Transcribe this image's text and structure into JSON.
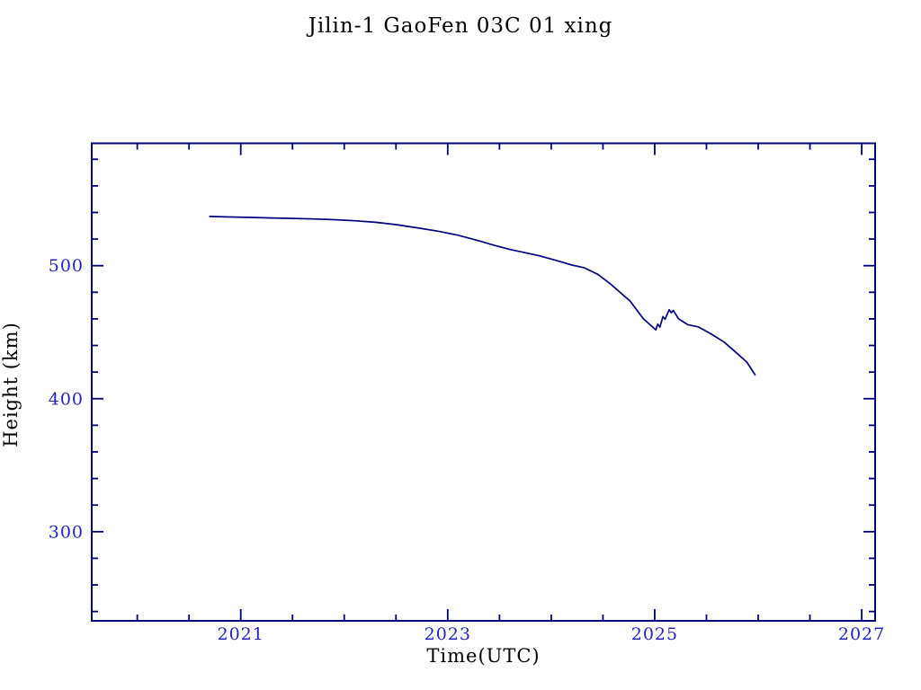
{
  "page": {
    "background": "#ffffff"
  },
  "chart_data": {
    "type": "line",
    "title": "Jilin-1 GaoFen 03C 01 xing",
    "xlabel": "Time(UTC)",
    "ylabel": "Height (km)",
    "xlim": [
      2019.56,
      2027.13
    ],
    "ylim": [
      233,
      592
    ],
    "x_major_ticks": [
      2021,
      2023,
      2025,
      2027
    ],
    "x_major_tick_labels": [
      "2021",
      "2023",
      "2025",
      "2027"
    ],
    "x_minor_step": 0.5,
    "y_major_ticks": [
      300,
      400,
      500
    ],
    "y_major_tick_labels": [
      "300",
      "400",
      "500"
    ],
    "y_minor_step": 20,
    "grid": false,
    "legend_position": "none",
    "colors": {
      "line": "#000080",
      "axis": "#000078",
      "text": "#2323BE"
    },
    "series": [
      {
        "name": "Height (km)",
        "x": [
          2020.7,
          2020.9,
          2021.1,
          2021.3,
          2021.5,
          2021.7,
          2021.9,
          2022.1,
          2022.3,
          2022.5,
          2022.7,
          2022.9,
          2023.1,
          2023.3,
          2023.45,
          2023.6,
          2023.75,
          2023.89,
          2024.05,
          2024.2,
          2024.32,
          2024.45,
          2024.58,
          2024.68,
          2024.76,
          2024.89,
          2025.01,
          2025.03,
          2025.05,
          2025.08,
          2025.1,
          2025.14,
          2025.16,
          2025.18,
          2025.23,
          2025.32,
          2025.42,
          2025.54,
          2025.67,
          2025.76,
          2025.89,
          2025.97
        ],
        "y": [
          537.0,
          536.6,
          536.3,
          535.9,
          535.5,
          535.1,
          534.6,
          533.8,
          532.6,
          530.9,
          528.5,
          526.0,
          522.9,
          518.8,
          515.3,
          512.2,
          509.7,
          507.4,
          503.9,
          500.5,
          498.4,
          493.5,
          485.8,
          478.9,
          473.6,
          460.1,
          451.8,
          456.1,
          453.8,
          461.7,
          459.7,
          466.9,
          464.6,
          466.4,
          460.1,
          455.6,
          454.0,
          448.9,
          442.6,
          436.5,
          427.5,
          418.0
        ]
      }
    ]
  }
}
